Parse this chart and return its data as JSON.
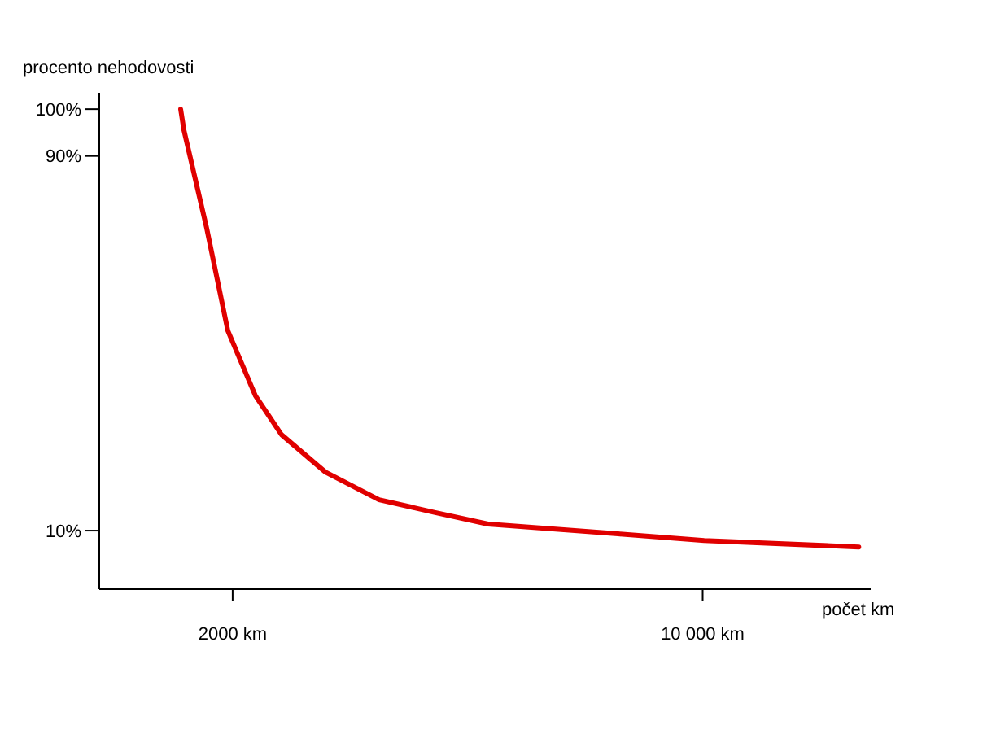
{
  "chart_data": {
    "type": "line",
    "xlabel": "počet km",
    "ylabel": "procento nehodovosti",
    "x": [
      1115,
      1171,
      1558,
      1918,
      2388,
      2831,
      3579,
      4492,
      5433,
      6346,
      8560,
      10027,
      12657
    ],
    "series": [
      {
        "color": "#e00000",
        "values": [
          100,
          95.5,
          74.6,
          52.7,
          38.8,
          30.5,
          22.5,
          16.6,
          13.9,
          11.4,
          9.3,
          7.9,
          6.5
        ]
      }
    ],
    "xlim": [
      -270,
      12860
    ],
    "ylim": [
      -2.5,
      103.5
    ],
    "xticks": [
      {
        "value": 2000,
        "label": "2000 km"
      },
      {
        "value": 10000,
        "label": "10 000 km"
      }
    ],
    "yticks": [
      {
        "value": 10,
        "label": "10%"
      },
      {
        "value": 90,
        "label": "90%"
      },
      {
        "value": 100,
        "label": "100%"
      }
    ],
    "grid": false,
    "legend": false,
    "marker": "none",
    "line_style": "solid"
  }
}
